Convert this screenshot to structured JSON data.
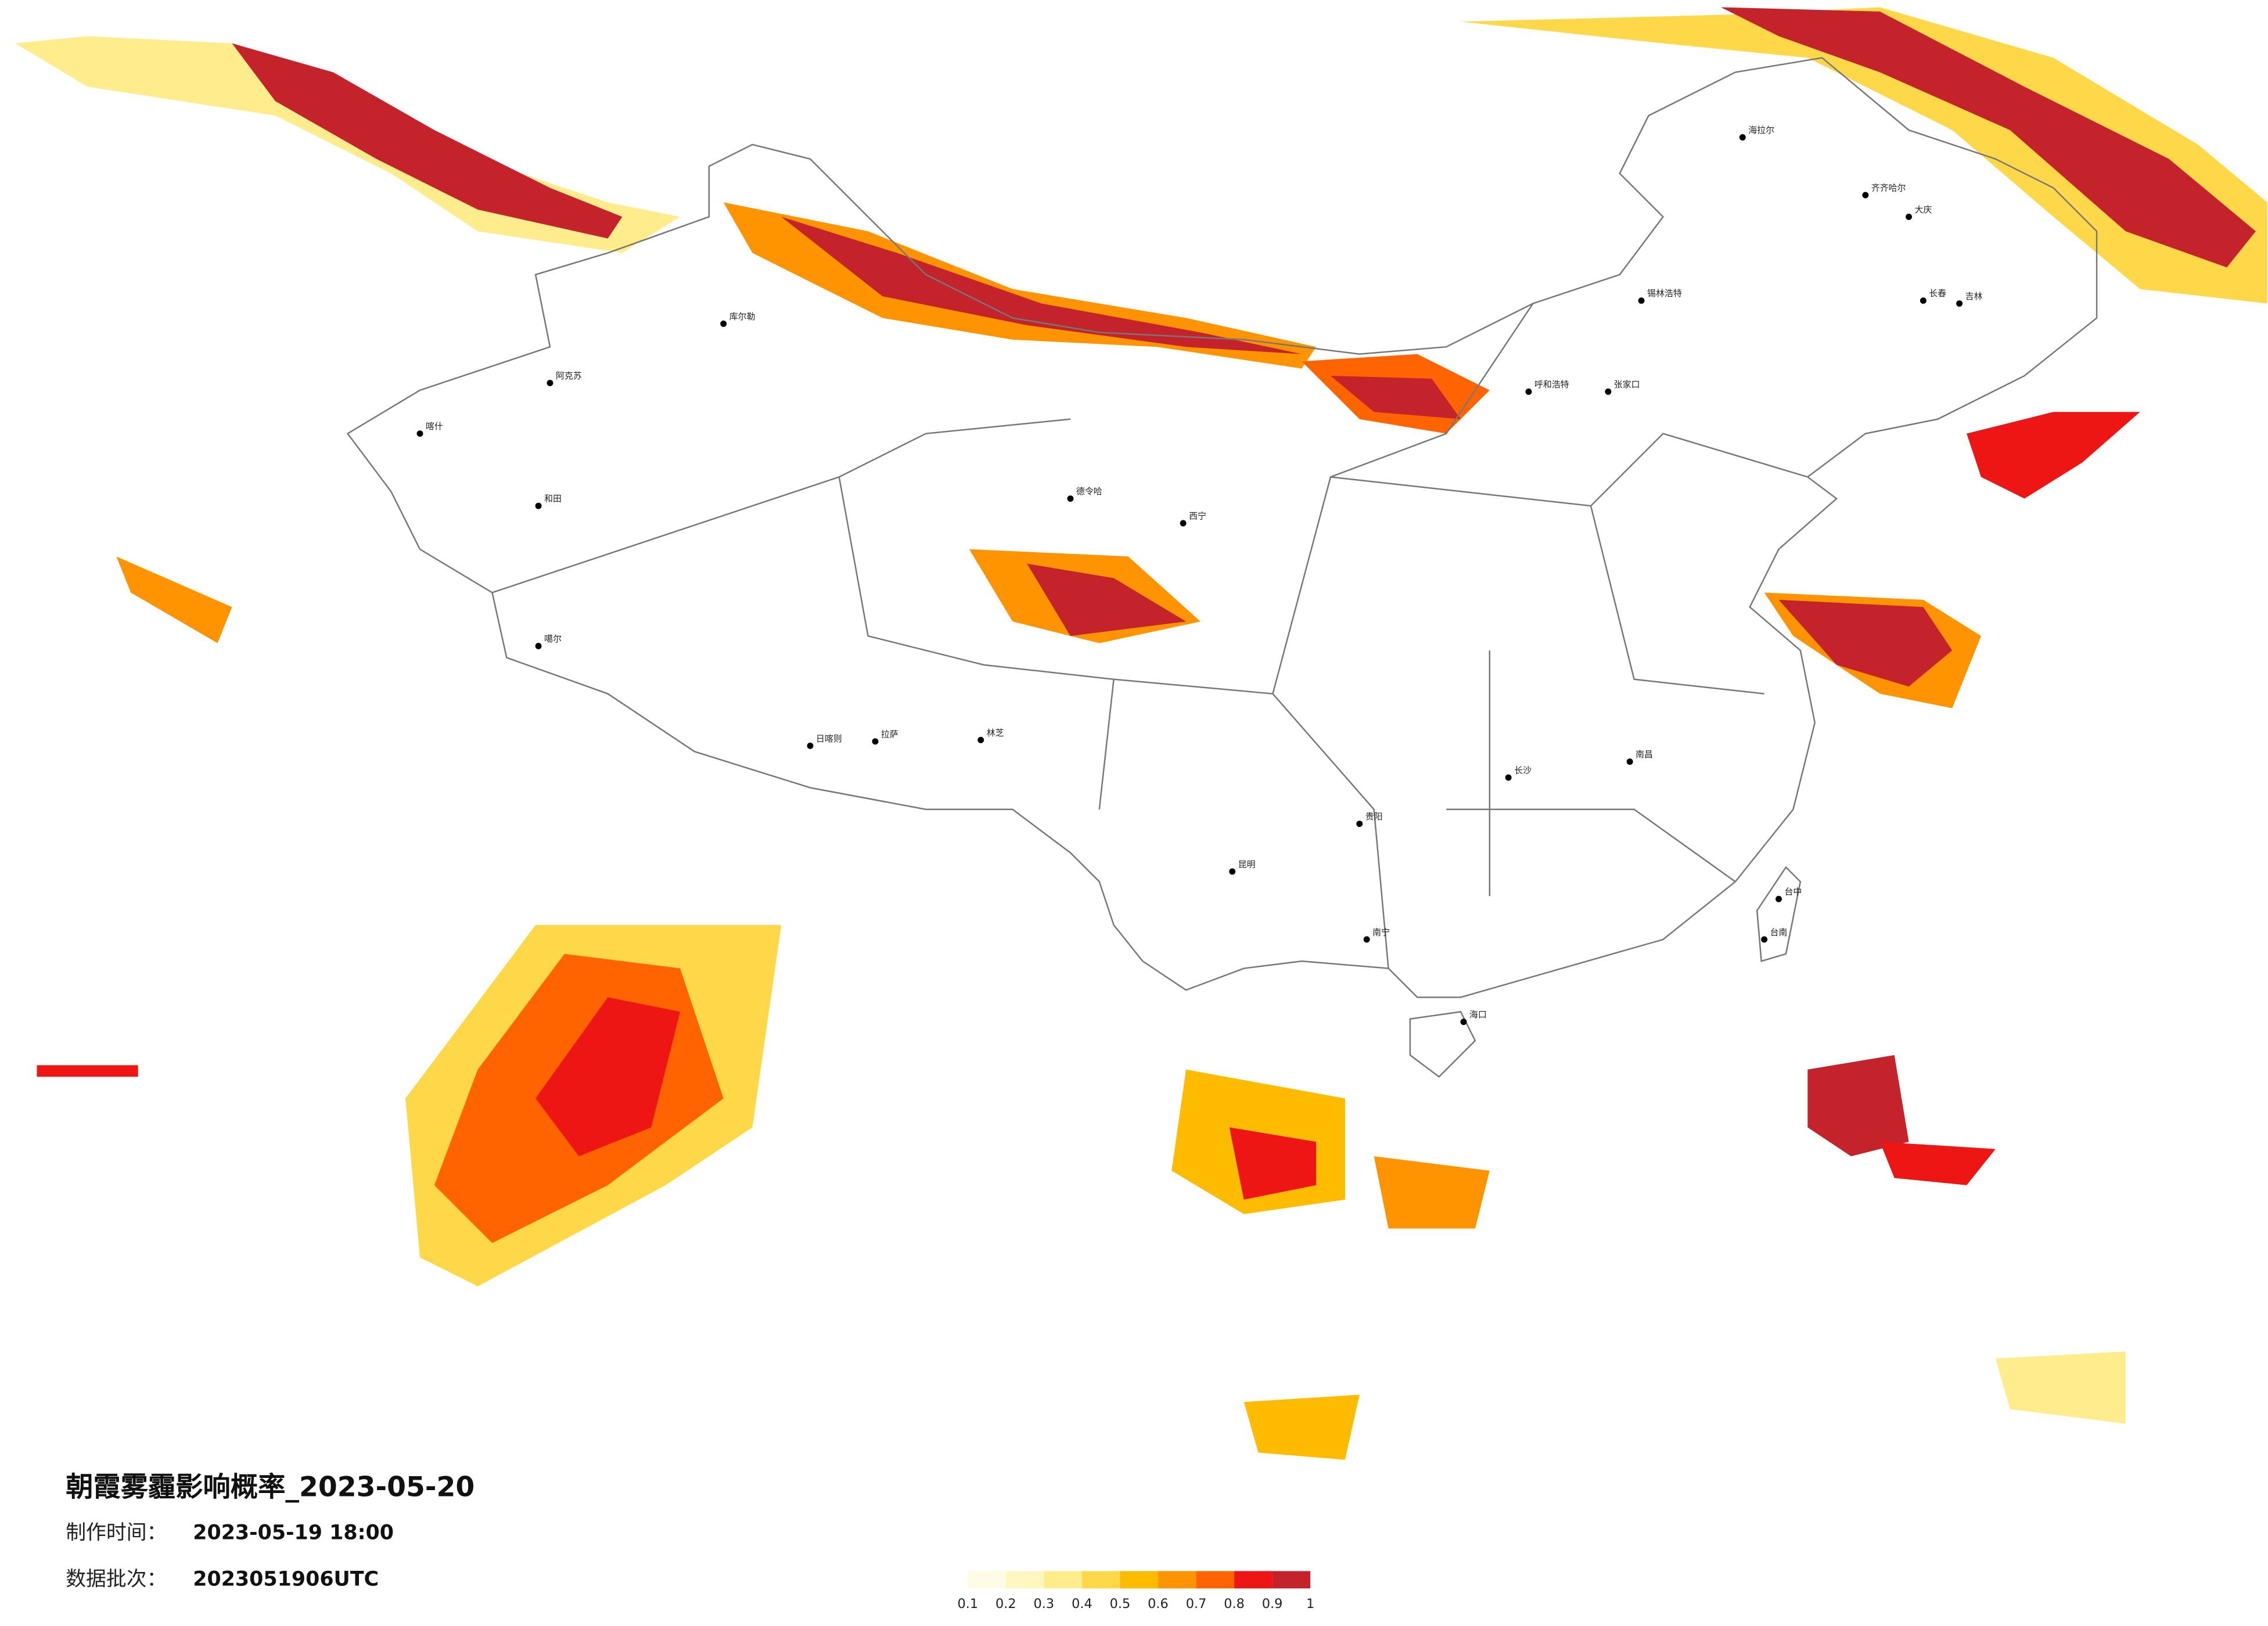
{
  "title": "朝霞雾霾影响概率_2023-05-20",
  "info": [
    {
      "label": "制作时间：",
      "value": "2023-05-19 18:00"
    },
    {
      "label": "数据批次：",
      "value": "2023051906UTC"
    }
  ],
  "legend": {
    "ticks": [
      0.1,
      0.2,
      0.3,
      0.4,
      0.5,
      0.6,
      0.7,
      0.8,
      0.9,
      1
    ],
    "colors": [
      "#fffce6",
      "#fff7bf",
      "#ffec8c",
      "#ffd84a",
      "#ffbb00",
      "#ff9300",
      "#ff6400",
      "#ee1515",
      "#c4232b"
    ]
  },
  "cities": [
    "海拉尔",
    "齐齐哈尔",
    "大庆",
    "长春",
    "吉林",
    "锡林浩特",
    "呼和浩特",
    "张家口",
    "阿克苏",
    "喀什",
    "和田",
    "库尔勒",
    "德令哈",
    "噶尔",
    "日喀则",
    "拉萨",
    "林芝",
    "西宁",
    "南昌",
    "长沙",
    "贵阳",
    "昆明",
    "南宁",
    "海口",
    "台中",
    "台南"
  ]
}
